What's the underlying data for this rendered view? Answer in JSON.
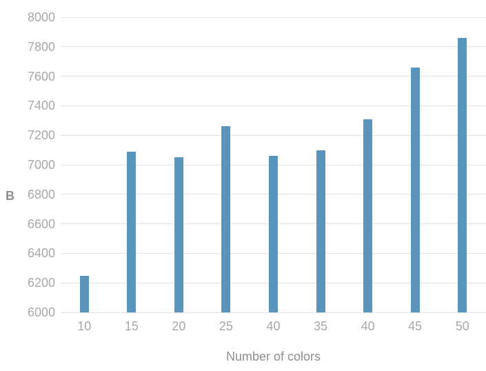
{
  "chart_data": {
    "type": "bar",
    "title": "",
    "xlabel": "Number of colors",
    "ylabel": "B",
    "categories": [
      "10",
      "15",
      "20",
      "25",
      "40",
      "35",
      "40",
      "45",
      "50"
    ],
    "values": [
      6250,
      7090,
      7050,
      7260,
      7060,
      7100,
      7310,
      7660,
      7860
    ],
    "ylim": [
      6000,
      8000
    ],
    "ytick_step": 200,
    "yticks": [
      "6000",
      "6200",
      "6400",
      "6600",
      "6800",
      "7000",
      "7200",
      "7400",
      "7600",
      "7800",
      "8000"
    ],
    "grid": "horizontal",
    "legend_position": "none",
    "colors": {
      "bar": "#5894bc",
      "gridline": "#e2e2e2",
      "tick_text": "#a5a8ab",
      "axis_title_text": "#8a8e92"
    }
  }
}
